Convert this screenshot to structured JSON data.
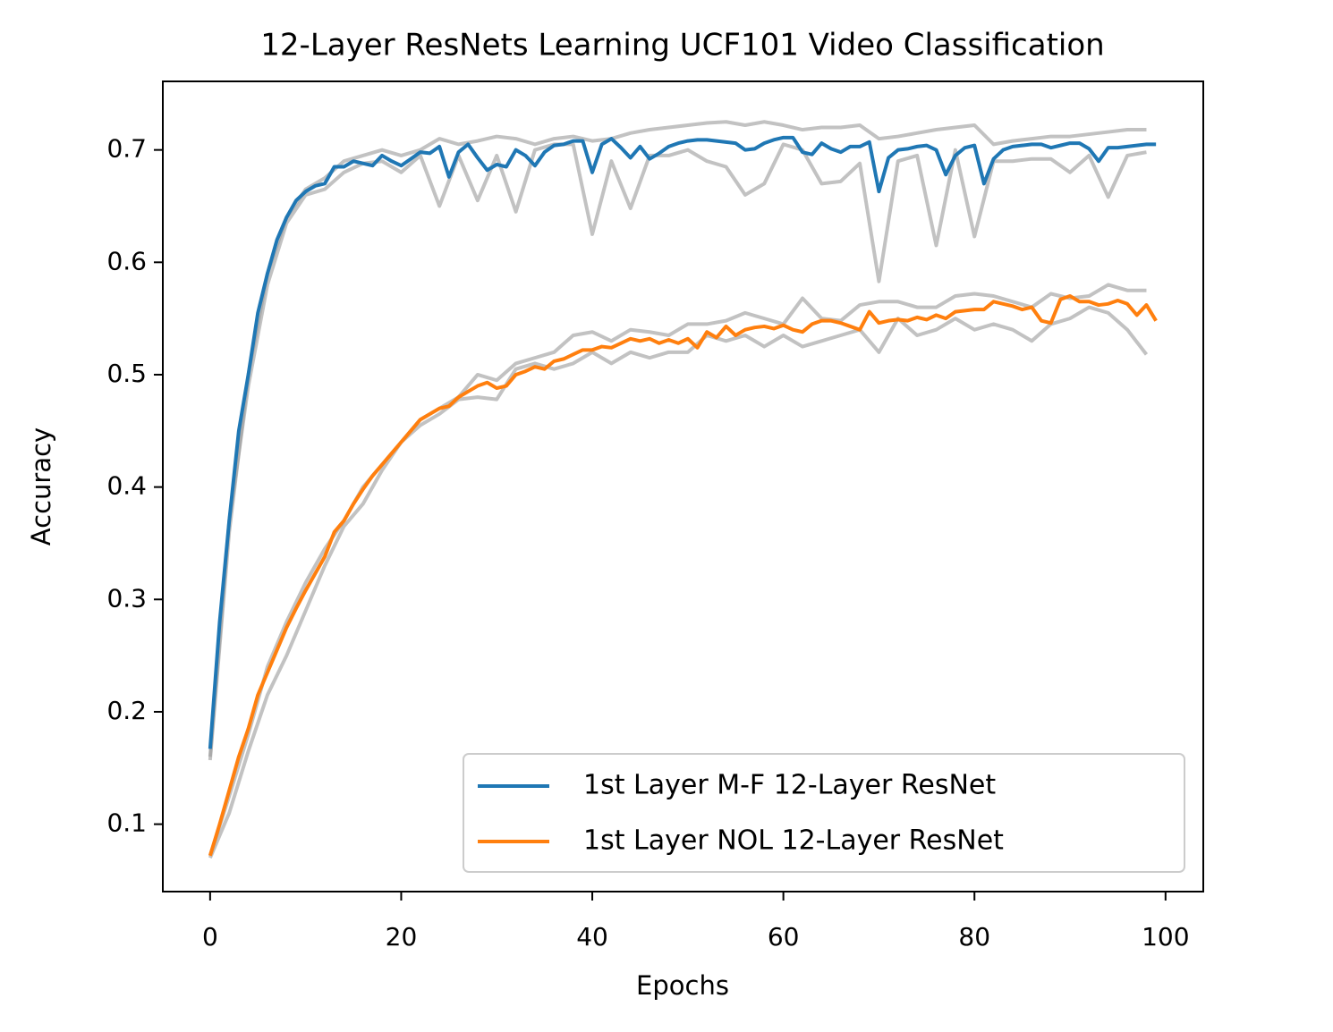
{
  "chart_data": {
    "type": "line",
    "title": "12-Layer ResNets Learning UCF101 Video Classification",
    "xlabel": "Epochs",
    "ylabel": "Accuracy",
    "xlim": [
      -4.95,
      103.95
    ],
    "ylim": [
      0.04,
      0.761
    ],
    "xticks": [
      0,
      20,
      40,
      60,
      80,
      100
    ],
    "yticks": [
      0.1,
      0.2,
      0.3,
      0.4,
      0.5,
      0.6,
      0.7
    ],
    "legend": "lower right",
    "x": [
      0,
      1,
      2,
      3,
      4,
      5,
      6,
      7,
      8,
      9,
      10,
      11,
      12,
      13,
      14,
      15,
      16,
      17,
      18,
      19,
      20,
      21,
      22,
      23,
      24,
      25,
      26,
      27,
      28,
      29,
      30,
      31,
      32,
      33,
      34,
      35,
      36,
      37,
      38,
      39,
      40,
      41,
      42,
      43,
      44,
      45,
      46,
      47,
      48,
      49,
      50,
      51,
      52,
      53,
      54,
      55,
      56,
      57,
      58,
      59,
      60,
      61,
      62,
      63,
      64,
      65,
      66,
      67,
      68,
      69,
      70,
      71,
      72,
      73,
      74,
      75,
      76,
      77,
      78,
      79,
      80,
      81,
      82,
      83,
      84,
      85,
      86,
      87,
      88,
      89,
      90,
      91,
      92,
      93,
      94,
      95,
      96,
      97,
      98,
      99
    ],
    "series": [
      {
        "color": "#999999",
        "x": [
          0,
          2,
          4,
          6,
          8,
          10,
          12,
          14,
          16,
          18,
          20,
          22,
          24,
          26,
          28,
          30,
          32,
          34,
          36,
          38,
          40,
          42,
          44,
          46,
          48,
          50,
          52,
          54,
          56,
          58,
          60,
          62,
          64,
          66,
          68,
          70,
          72,
          74,
          76,
          78,
          80,
          82,
          84,
          86,
          88,
          90,
          92,
          94,
          96,
          98
        ],
        "values": [
          0.157,
          0.36,
          0.5,
          0.59,
          0.64,
          0.665,
          0.675,
          0.69,
          0.695,
          0.7,
          0.695,
          0.7,
          0.71,
          0.705,
          0.708,
          0.712,
          0.71,
          0.705,
          0.71,
          0.712,
          0.708,
          0.71,
          0.715,
          0.718,
          0.72,
          0.722,
          0.724,
          0.725,
          0.722,
          0.725,
          0.722,
          0.718,
          0.72,
          0.72,
          0.722,
          0.71,
          0.712,
          0.715,
          0.718,
          0.72,
          0.722,
          0.705,
          0.708,
          0.71,
          0.712,
          0.712,
          0.714,
          0.716,
          0.718,
          0.718
        ]
      },
      {
        "color": "#999999",
        "x": [
          0,
          2,
          4,
          6,
          8,
          10,
          12,
          14,
          16,
          18,
          20,
          22,
          24,
          26,
          28,
          30,
          32,
          34,
          36,
          38,
          40,
          42,
          44,
          46,
          48,
          50,
          52,
          54,
          56,
          58,
          60,
          62,
          64,
          66,
          68,
          70,
          72,
          74,
          76,
          78,
          80,
          82,
          84,
          86,
          88,
          90,
          92,
          94,
          96,
          98
        ],
        "values": [
          0.16,
          0.37,
          0.49,
          0.58,
          0.635,
          0.66,
          0.665,
          0.68,
          0.688,
          0.69,
          0.68,
          0.695,
          0.65,
          0.695,
          0.655,
          0.695,
          0.645,
          0.7,
          0.705,
          0.705,
          0.625,
          0.69,
          0.648,
          0.695,
          0.695,
          0.7,
          0.69,
          0.685,
          0.66,
          0.67,
          0.705,
          0.7,
          0.67,
          0.672,
          0.688,
          0.583,
          0.69,
          0.695,
          0.615,
          0.7,
          0.623,
          0.69,
          0.69,
          0.692,
          0.692,
          0.68,
          0.695,
          0.658,
          0.695,
          0.698
        ]
      },
      {
        "color": "#999999",
        "x": [
          0,
          2,
          4,
          6,
          8,
          10,
          12,
          14,
          16,
          18,
          20,
          22,
          24,
          26,
          28,
          30,
          32,
          34,
          36,
          38,
          40,
          42,
          44,
          46,
          48,
          50,
          52,
          54,
          56,
          58,
          60,
          62,
          64,
          66,
          68,
          70,
          72,
          74,
          76,
          78,
          80,
          82,
          84,
          86,
          88,
          90,
          92,
          94,
          96,
          98
        ],
        "values": [
          0.072,
          0.125,
          0.18,
          0.24,
          0.28,
          0.315,
          0.345,
          0.37,
          0.4,
          0.42,
          0.44,
          0.46,
          0.47,
          0.48,
          0.5,
          0.495,
          0.51,
          0.515,
          0.52,
          0.535,
          0.538,
          0.53,
          0.54,
          0.538,
          0.535,
          0.545,
          0.545,
          0.548,
          0.555,
          0.55,
          0.545,
          0.568,
          0.55,
          0.548,
          0.562,
          0.565,
          0.565,
          0.56,
          0.56,
          0.57,
          0.572,
          0.57,
          0.565,
          0.56,
          0.572,
          0.568,
          0.57,
          0.58,
          0.575,
          0.575
        ]
      },
      {
        "color": "#999999",
        "x": [
          0,
          2,
          4,
          6,
          8,
          10,
          12,
          14,
          16,
          18,
          20,
          22,
          24,
          26,
          28,
          30,
          32,
          34,
          36,
          38,
          40,
          42,
          44,
          46,
          48,
          50,
          52,
          54,
          56,
          58,
          60,
          62,
          64,
          66,
          68,
          70,
          72,
          74,
          76,
          78,
          80,
          82,
          84,
          86,
          88,
          90,
          92,
          94,
          96,
          98
        ],
        "values": [
          0.07,
          0.11,
          0.165,
          0.215,
          0.25,
          0.29,
          0.33,
          0.365,
          0.385,
          0.415,
          0.44,
          0.455,
          0.465,
          0.478,
          0.48,
          0.478,
          0.505,
          0.51,
          0.505,
          0.51,
          0.52,
          0.51,
          0.52,
          0.515,
          0.52,
          0.52,
          0.535,
          0.53,
          0.535,
          0.525,
          0.535,
          0.525,
          0.53,
          0.535,
          0.54,
          0.52,
          0.55,
          0.535,
          0.54,
          0.55,
          0.54,
          0.545,
          0.54,
          0.53,
          0.545,
          0.55,
          0.56,
          0.555,
          0.54,
          0.518
        ]
      },
      {
        "name": "1st Layer M-F 12-Layer ResNet",
        "color": "#1f77b4",
        "values": [
          0.167,
          0.28,
          0.37,
          0.45,
          0.5,
          0.555,
          0.59,
          0.62,
          0.64,
          0.655,
          0.663,
          0.668,
          0.67,
          0.685,
          0.685,
          0.69,
          0.688,
          0.686,
          0.695,
          0.69,
          0.686,
          0.692,
          0.698,
          0.697,
          0.703,
          0.676,
          0.698,
          0.705,
          0.693,
          0.682,
          0.687,
          0.685,
          0.7,
          0.695,
          0.686,
          0.698,
          0.704,
          0.705,
          0.708,
          0.708,
          0.68,
          0.705,
          0.71,
          0.702,
          0.693,
          0.703,
          0.692,
          0.697,
          0.703,
          0.706,
          0.708,
          0.709,
          0.709,
          0.708,
          0.707,
          0.706,
          0.7,
          0.701,
          0.706,
          0.709,
          0.711,
          0.711,
          0.698,
          0.696,
          0.706,
          0.701,
          0.698,
          0.703,
          0.703,
          0.707,
          0.663,
          0.693,
          0.7,
          0.701,
          0.703,
          0.704,
          0.7,
          0.678,
          0.695,
          0.702,
          0.704,
          0.67,
          0.692,
          0.7,
          0.703,
          0.704,
          0.705,
          0.705,
          0.702,
          0.704,
          0.706,
          0.706,
          0.701,
          0.69,
          0.702,
          0.702,
          0.703,
          0.704,
          0.705,
          0.705
        ]
      },
      {
        "name": "1st Layer NOL 12-Layer ResNet",
        "color": "#ff7f0e",
        "values": [
          0.072,
          0.1,
          0.13,
          0.16,
          0.185,
          0.215,
          0.235,
          0.255,
          0.275,
          0.292,
          0.308,
          0.323,
          0.338,
          0.36,
          0.37,
          0.385,
          0.398,
          0.41,
          0.42,
          0.43,
          0.44,
          0.45,
          0.46,
          0.465,
          0.47,
          0.472,
          0.48,
          0.485,
          0.49,
          0.493,
          0.488,
          0.49,
          0.5,
          0.503,
          0.507,
          0.505,
          0.512,
          0.514,
          0.518,
          0.522,
          0.522,
          0.525,
          0.524,
          0.528,
          0.532,
          0.53,
          0.532,
          0.528,
          0.531,
          0.528,
          0.532,
          0.524,
          0.538,
          0.533,
          0.543,
          0.535,
          0.54,
          0.542,
          0.543,
          0.541,
          0.544,
          0.54,
          0.538,
          0.545,
          0.548,
          0.548,
          0.546,
          0.543,
          0.54,
          0.556,
          0.546,
          0.548,
          0.549,
          0.548,
          0.551,
          0.549,
          0.553,
          0.55,
          0.556,
          0.557,
          0.558,
          0.558,
          0.565,
          0.563,
          0.561,
          0.558,
          0.56,
          0.548,
          0.546,
          0.567,
          0.57,
          0.565,
          0.565,
          0.562,
          0.563,
          0.566,
          0.563,
          0.553,
          0.562,
          0.548
        ]
      }
    ]
  }
}
